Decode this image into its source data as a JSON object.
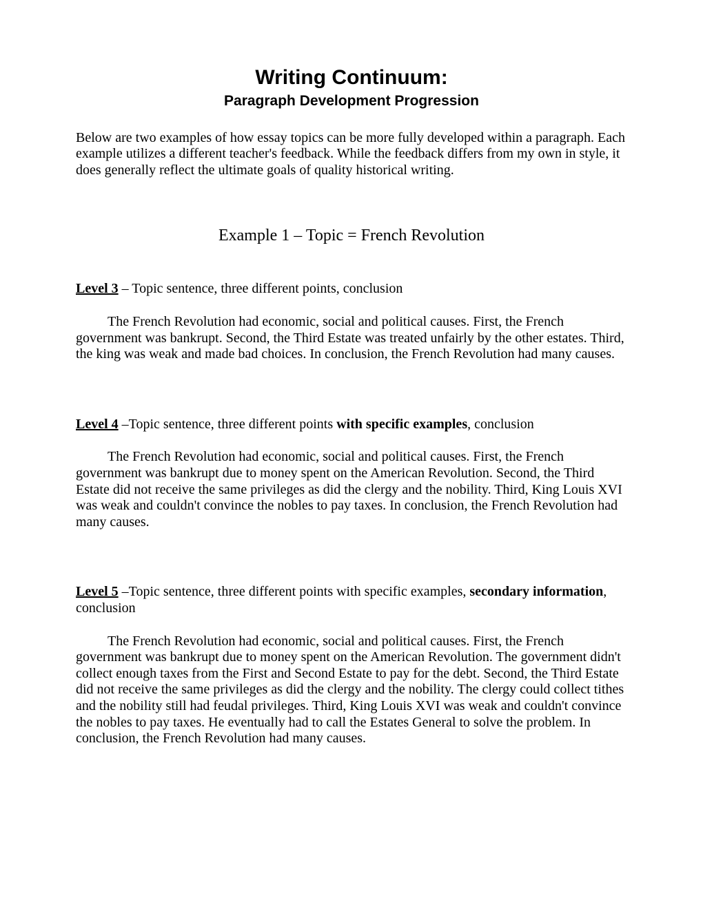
{
  "title": "Writing Continuum:",
  "subtitle": "Paragraph Development Progression",
  "intro": "Below are two examples of how essay topics can be more fully developed within a paragraph.  Each example utilizes a different teacher's feedback.  While the feedback differs from my own in style, it does generally reflect the ultimate goals of quality historical writing.",
  "example_heading": "Example 1 – Topic = French Revolution",
  "levels": {
    "l3": {
      "label": "Level 3",
      "descr_before": " – Topic sentence, three different points, conclusion",
      "descr_bold": "",
      "descr_after": "",
      "body": "The French Revolution had economic, social and political causes.  First, the French government was bankrupt.  Second, the Third Estate was treated unfairly by the other estates.  Third, the king was weak and made bad choices.  In conclusion, the French Revolution had many causes."
    },
    "l4": {
      "label": "Level 4",
      "descr_before": " –Topic sentence, three different points ",
      "descr_bold": "with specific examples",
      "descr_after": ", conclusion",
      "body": "The French Revolution had economic, social and political causes.  First, the French government was bankrupt due to money spent on the American Revolution.  Second, the Third Estate did not receive the same privileges as did the clergy and the nobility.  Third, King Louis XVI was weak and couldn't convince the nobles to pay taxes.  In conclusion, the French Revolution had many causes."
    },
    "l5": {
      "label": "Level 5",
      "descr_before": " –Topic sentence, three different points with specific examples, ",
      "descr_bold": "secondary information",
      "descr_after": ", conclusion",
      "body": "The French Revolution had economic, social and political causes.  First, the French government was bankrupt due to money spent on the American Revolution.  The government didn't collect enough taxes from the First and Second Estate to pay for the debt.  Second, the Third Estate did not receive the same privileges as did the clergy and the nobility.  The clergy could collect tithes and the nobility still had feudal privileges.  Third, King Louis XVI was weak and couldn't convince the nobles to pay taxes.  He eventually had to call the Estates General to solve the problem.  In conclusion, the French Revolution had many causes."
    }
  }
}
